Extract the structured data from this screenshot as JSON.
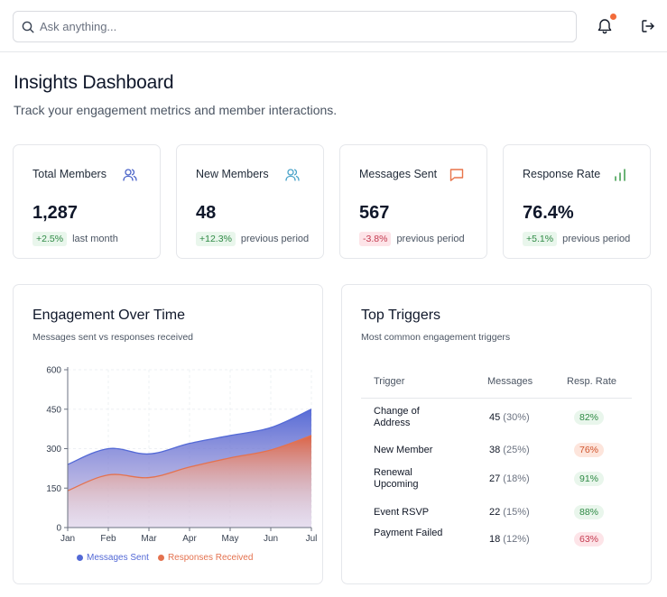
{
  "search": {
    "placeholder": "Ask anything..."
  },
  "header": {
    "title": "Insights Dashboard",
    "subtitle": "Track your engagement metrics and member interactions."
  },
  "stats": [
    {
      "label": "Total Members",
      "value": "1,287",
      "change": "+2.5%",
      "change_type": "positive",
      "period": "last month",
      "icon": "users-icon",
      "icon_color": "#4a63c8"
    },
    {
      "label": "New Members",
      "value": "48",
      "change": "+12.3%",
      "change_type": "positive",
      "period": "previous period",
      "icon": "users-icon",
      "icon_color": "#4aa3c9"
    },
    {
      "label": "Messages Sent",
      "value": "567",
      "change": "-3.8%",
      "change_type": "negative",
      "period": "previous period",
      "icon": "message-square-icon",
      "icon_color": "#e8744a"
    },
    {
      "label": "Response Rate",
      "value": "76.4%",
      "change": "+5.1%",
      "change_type": "positive",
      "period": "previous period",
      "icon": "bar-chart-icon",
      "icon_color": "#3c9b4a"
    }
  ],
  "engagement": {
    "title": "Engagement Over Time",
    "subtitle": "Messages sent vs responses received"
  },
  "chart_data": {
    "type": "area",
    "categories": [
      "Jan",
      "Feb",
      "Mar",
      "Apr",
      "May",
      "Jun",
      "Jul"
    ],
    "ylim": [
      0,
      600
    ],
    "yticks": [
      "0",
      "150",
      "300",
      "450",
      "600"
    ],
    "series": [
      {
        "name": "Messages Sent",
        "color": "#5369d6",
        "values": [
          240,
          300,
          280,
          320,
          350,
          380,
          450
        ]
      },
      {
        "name": "Responses Received",
        "color": "#e4724f",
        "values": [
          140,
          200,
          190,
          230,
          265,
          295,
          350
        ]
      }
    ],
    "legend": "bottom",
    "grid": true
  },
  "triggers": {
    "title": "Top Triggers",
    "subtitle": "Most common engagement triggers",
    "headers": {
      "trigger": "Trigger",
      "messages": "Messages",
      "rate": "Resp. Rate"
    },
    "rows": [
      {
        "trigger": "Change of Address",
        "messages": "45",
        "pct": "(30%)",
        "rate": "82%",
        "rate_status": "good"
      },
      {
        "trigger": "New Member",
        "messages": "38",
        "pct": "(25%)",
        "rate": "76%",
        "rate_status": "warn"
      },
      {
        "trigger": "Renewal Upcoming",
        "messages": "27",
        "pct": "(18%)",
        "rate": "91%",
        "rate_status": "good"
      },
      {
        "trigger": "Event RSVP",
        "messages": "22",
        "pct": "(15%)",
        "rate": "88%",
        "rate_status": "good"
      },
      {
        "trigger": "Payment Failed",
        "messages": "18",
        "pct": "(12%)",
        "rate": "63%",
        "rate_status": "bad"
      }
    ]
  },
  "rate_colors": {
    "good": {
      "bg": "#e9f6ec",
      "fg": "#2f8a45"
    },
    "warn": {
      "bg": "#fde5dc",
      "fg": "#d0542c"
    },
    "bad": {
      "bg": "#fde4e8",
      "fg": "#c43a4f"
    }
  }
}
